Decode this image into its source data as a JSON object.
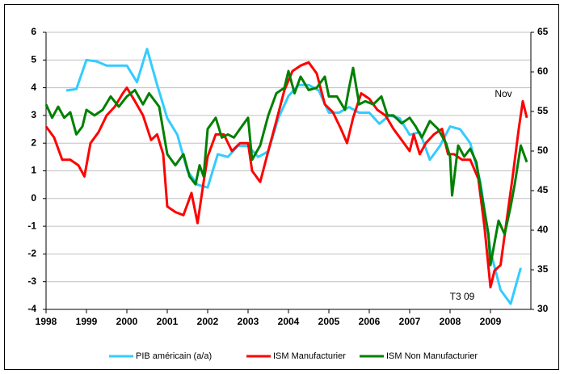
{
  "chart_data": {
    "type": "line",
    "xlim": [
      1998,
      2010
    ],
    "xticks": [
      1998,
      1999,
      2000,
      2001,
      2002,
      2003,
      2004,
      2005,
      2006,
      2007,
      2008,
      2009
    ],
    "ylim": [
      -4,
      6
    ],
    "yticks": [
      -4,
      -3,
      -2,
      -1,
      0,
      1,
      2,
      3,
      4,
      5,
      6
    ],
    "y2lim": [
      30,
      65
    ],
    "y2ticks": [
      30,
      35,
      40,
      45,
      50,
      55,
      60,
      65
    ],
    "grid": true,
    "legend": "bottom",
    "annotations": [
      "Nov",
      "T3 09"
    ],
    "series": [
      {
        "name": "PIB américain (a/a)",
        "color": "#33ccff",
        "x": [
          1998.5,
          1998.75,
          1999.0,
          1999.25,
          1999.5,
          1999.75,
          2000.0,
          2000.25,
          2000.5,
          2000.75,
          2001.0,
          2001.25,
          2001.5,
          2001.75,
          2002.0,
          2002.25,
          2002.5,
          2002.75,
          2003.0,
          2003.25,
          2003.5,
          2003.75,
          2004.0,
          2004.25,
          2004.5,
          2004.75,
          2005.0,
          2005.25,
          2005.5,
          2005.75,
          2006.0,
          2006.25,
          2006.5,
          2006.75,
          2007.0,
          2007.25,
          2007.5,
          2007.75,
          2008.0,
          2008.25,
          2008.5,
          2008.75,
          2009.0,
          2009.25,
          2009.5,
          2009.75
        ],
        "values": [
          3.9,
          3.95,
          5.0,
          4.95,
          4.8,
          4.8,
          4.8,
          4.2,
          5.4,
          4.1,
          2.9,
          2.3,
          1.0,
          0.5,
          0.4,
          1.6,
          1.5,
          1.9,
          1.9,
          1.5,
          1.7,
          2.9,
          3.7,
          4.1,
          4.1,
          3.9,
          3.1,
          3.1,
          3.3,
          3.1,
          3.1,
          2.7,
          3.0,
          2.9,
          2.3,
          2.4,
          1.4,
          1.9,
          2.6,
          2.5,
          2.0,
          0.6,
          -1.9,
          -3.3,
          -3.8,
          -2.5
        ]
      },
      {
        "name": "ISM Manufacturier",
        "color": "#ff0000",
        "axis": "y2",
        "x": [
          1998.0,
          1998.2,
          1998.4,
          1998.6,
          1998.8,
          1998.95,
          1999.1,
          1999.3,
          1999.5,
          1999.7,
          1999.9,
          2000.0,
          2000.2,
          2000.4,
          2000.6,
          2000.75,
          2000.9,
          2001.0,
          2001.2,
          2001.4,
          2001.6,
          2001.75,
          2001.9,
          2002.0,
          2002.2,
          2002.4,
          2002.6,
          2002.8,
          2003.0,
          2003.1,
          2003.3,
          2003.5,
          2003.7,
          2003.9,
          2004.1,
          2004.3,
          2004.5,
          2004.7,
          2004.9,
          2005.1,
          2005.3,
          2005.45,
          2005.6,
          2005.8,
          2006.0,
          2006.2,
          2006.4,
          2006.6,
          2006.8,
          2007.0,
          2007.1,
          2007.25,
          2007.4,
          2007.6,
          2007.8,
          2007.95,
          2008.1,
          2008.3,
          2008.5,
          2008.7,
          2008.85,
          2009.0,
          2009.1,
          2009.25,
          2009.4,
          2009.55,
          2009.7,
          2009.8,
          2009.9
        ],
        "values": [
          53.1,
          51.7,
          48.9,
          48.9,
          48.2,
          46.8,
          51.0,
          52.4,
          54.5,
          55.6,
          57.3,
          58.0,
          56.3,
          54.5,
          51.4,
          52.1,
          49.6,
          43.0,
          42.3,
          41.9,
          44.7,
          40.9,
          46.1,
          49.3,
          52.1,
          52.1,
          50.0,
          51.0,
          51.0,
          47.5,
          46.1,
          50.0,
          53.8,
          57.7,
          60.1,
          60.8,
          61.2,
          59.8,
          55.9,
          54.9,
          52.8,
          51.0,
          54.2,
          57.3,
          56.6,
          55.2,
          54.5,
          52.8,
          51.4,
          50.0,
          52.1,
          49.6,
          51.0,
          52.1,
          52.8,
          49.6,
          49.6,
          48.9,
          48.9,
          46.5,
          40.5,
          32.8,
          34.9,
          35.6,
          41.2,
          46.8,
          52.8,
          56.3,
          54.2
        ]
      },
      {
        "name": "ISM Non Manufacturier",
        "color": "#008000",
        "axis": "y2",
        "x": [
          1998.0,
          1998.15,
          1998.3,
          1998.45,
          1998.6,
          1998.75,
          1998.9,
          1999.0,
          1999.2,
          1999.4,
          1999.6,
          1999.8,
          2000.0,
          2000.2,
          2000.4,
          2000.55,
          2000.8,
          2001.0,
          2001.2,
          2001.4,
          2001.55,
          2001.7,
          2001.8,
          2001.9,
          2002.0,
          2002.2,
          2002.35,
          2002.5,
          2002.65,
          2002.8,
          2003.0,
          2003.1,
          2003.3,
          2003.5,
          2003.7,
          2003.9,
          2004.0,
          2004.15,
          2004.3,
          2004.5,
          2004.7,
          2004.9,
          2005.0,
          2005.2,
          2005.4,
          2005.5,
          2005.6,
          2005.75,
          2005.9,
          2006.1,
          2006.3,
          2006.45,
          2006.6,
          2006.8,
          2007.0,
          2007.15,
          2007.3,
          2007.5,
          2007.7,
          2007.9,
          2008.0,
          2008.05,
          2008.2,
          2008.35,
          2008.5,
          2008.65,
          2008.8,
          2008.95,
          2009.0,
          2009.1,
          2009.2,
          2009.35,
          2009.5,
          2009.6,
          2009.75,
          2009.9
        ],
        "values": [
          55.9,
          54.2,
          55.6,
          54.2,
          54.9,
          52.1,
          53.1,
          55.2,
          54.5,
          55.2,
          56.9,
          55.6,
          56.9,
          57.7,
          55.9,
          57.3,
          55.6,
          49.6,
          48.2,
          49.6,
          46.8,
          45.8,
          48.2,
          46.8,
          52.8,
          54.2,
          51.7,
          52.1,
          51.7,
          52.8,
          54.2,
          48.9,
          50.7,
          54.5,
          57.3,
          58.0,
          60.1,
          57.3,
          59.4,
          57.7,
          58.0,
          59.4,
          56.9,
          56.9,
          55.2,
          58.0,
          60.5,
          55.9,
          56.3,
          55.9,
          56.9,
          54.5,
          54.5,
          53.5,
          54.2,
          53.1,
          51.7,
          53.8,
          52.8,
          51.0,
          49.3,
          44.4,
          50.7,
          49.3,
          50.3,
          48.6,
          44.0,
          39.5,
          35.6,
          38.4,
          41.2,
          39.5,
          43.0,
          45.8,
          50.7,
          48.6
        ]
      }
    ]
  }
}
